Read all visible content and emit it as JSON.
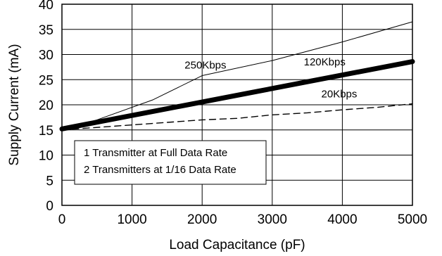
{
  "chart_data": {
    "type": "line",
    "title": "",
    "xlabel": "Load Capacitance (pF)",
    "ylabel": "Supply Current (mA)",
    "xlim": [
      0,
      5000
    ],
    "ylim": [
      0,
      40
    ],
    "xticks": [
      "0",
      "1000",
      "2000",
      "3000",
      "4000",
      "5000"
    ],
    "yticks": [
      "0",
      "5",
      "10",
      "15",
      "20",
      "25",
      "30",
      "35",
      "40"
    ],
    "grid": true,
    "series": [
      {
        "name": "250Kbps",
        "style": "thin-solid",
        "x": [
          0,
          500,
          1300,
          2000,
          3000,
          4000,
          5000
        ],
        "y": [
          15,
          17,
          21,
          25.8,
          28.8,
          32.5,
          36.5
        ]
      },
      {
        "name": "120Kbps",
        "style": "thick-solid",
        "x": [
          0,
          5000
        ],
        "y": [
          15.2,
          28.6
        ]
      },
      {
        "name": "20Kbps",
        "style": "dashed",
        "x": [
          0,
          1000,
          2000,
          2500,
          3000,
          3500,
          4000,
          4500,
          5000
        ],
        "y": [
          15,
          16,
          17,
          17.3,
          18,
          18.4,
          19,
          19.5,
          20.2
        ]
      }
    ],
    "annotations": [
      {
        "text": "250Kbps",
        "x": 1750,
        "y": 27.2
      },
      {
        "text": "120Kbps",
        "x": 3450,
        "y": 27.8
      },
      {
        "text": "20Kbps",
        "x": 3700,
        "y": 21.5
      }
    ],
    "legend": {
      "placement": "bottom-left",
      "lines": [
        "1 Transmitter at Full Data Rate",
        "2 Transmitters at 1/16 Data Rate"
      ]
    }
  }
}
